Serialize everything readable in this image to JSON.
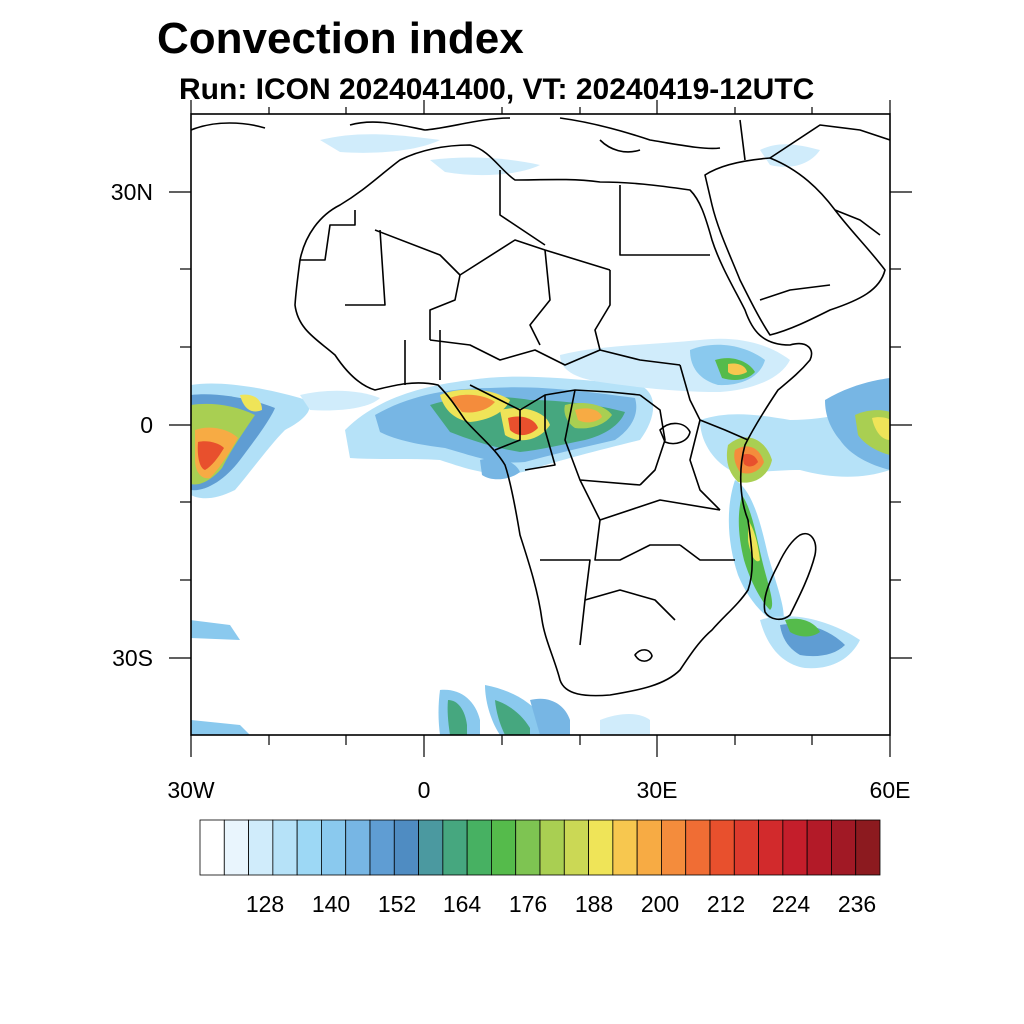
{
  "title": "Convection index",
  "subtitle": "Run: ICON 2024041400,  VT: 20240419-12UTC",
  "axes": {
    "lon_labels": [
      "30W",
      "0",
      "30E",
      "60E"
    ],
    "lat_labels": [
      "30N",
      "0",
      "30S"
    ]
  },
  "colorbar": {
    "labels": [
      "128",
      "140",
      "152",
      "164",
      "176",
      "188",
      "200",
      "212",
      "224",
      "236"
    ],
    "colors": [
      "#ffffff",
      "#e9f5fd",
      "#d0ecfb",
      "#b6e2f8",
      "#9dd8f5",
      "#8ac9ee",
      "#77b6e4",
      "#5f9dd3",
      "#4f8cc2",
      "#4b99a0",
      "#46a77f",
      "#47b162",
      "#55bb4b",
      "#7ec452",
      "#a9cf52",
      "#cbd855",
      "#efe458",
      "#f7c74f",
      "#f7ab44",
      "#f48c3c",
      "#f06d34",
      "#e8502d",
      "#dc3a2d",
      "#d22a2c",
      "#c41e2b",
      "#b31a28",
      "#a11925",
      "#8c1a1f"
    ]
  },
  "colors": {
    "frame": "#000000",
    "coast": "#000000"
  }
}
